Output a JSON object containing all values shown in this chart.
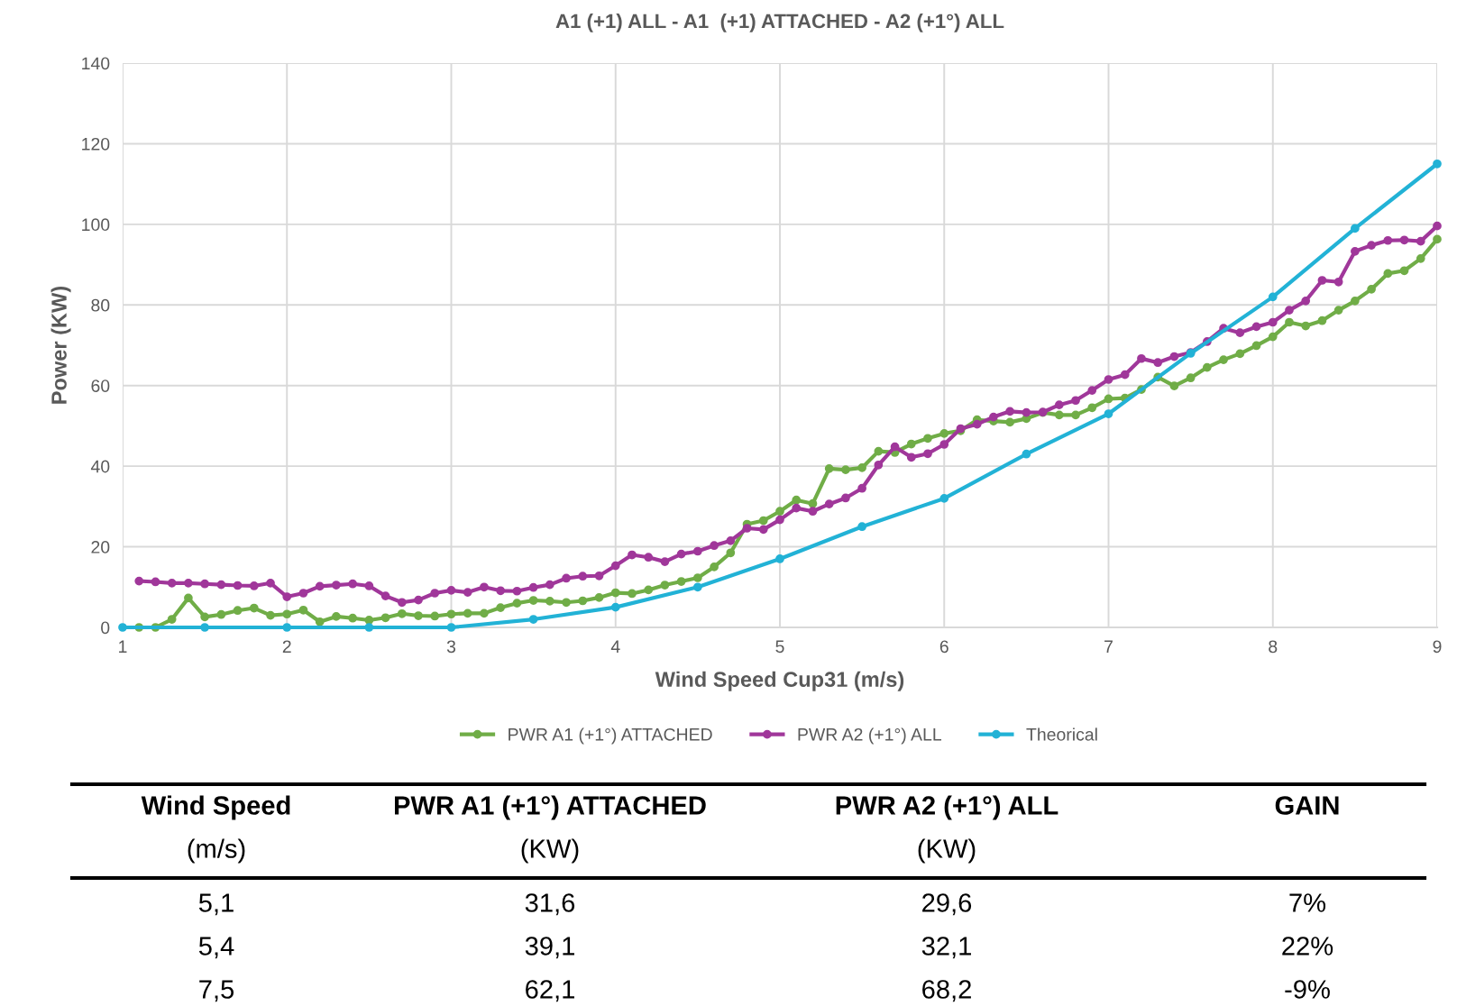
{
  "chart_data": {
    "type": "line",
    "title": "A1 (+1) ALL - A1  (+1) ATTACHED - A2 (+1°) ALL",
    "xlabel": "Wind Speed Cup31 (m/s)",
    "ylabel": "Power (KW)",
    "x": [
      1.1,
      1.2,
      1.3,
      1.4,
      1.5,
      1.6,
      1.7,
      1.8,
      1.9,
      2.0,
      2.1,
      2.2,
      2.3,
      2.4,
      2.5,
      2.6,
      2.7,
      2.8,
      2.9,
      3.0,
      3.1,
      3.2,
      3.3,
      3.4,
      3.5,
      3.6,
      3.7,
      3.8,
      3.9,
      4.0,
      4.1,
      4.2,
      4.3,
      4.4,
      4.5,
      4.6,
      4.7,
      4.8,
      4.9,
      5.0,
      5.1,
      5.2,
      5.3,
      5.4,
      5.5,
      5.6,
      5.7,
      5.8,
      5.9,
      6.0,
      6.1,
      6.2,
      6.3,
      6.4,
      6.5,
      6.6,
      6.7,
      6.8,
      6.9,
      7.0,
      7.1,
      7.2,
      7.3,
      7.4,
      7.5,
      7.6,
      7.7,
      7.8,
      7.9,
      8.0,
      8.1,
      8.2,
      8.3,
      8.4,
      8.5,
      8.6,
      8.7,
      8.8,
      8.9,
      9.0
    ],
    "series": [
      {
        "name": "PWR A1 (+1°) ATTACHED",
        "color": "#70ad47",
        "values": [
          0,
          0,
          2.0,
          7.3,
          2.6,
          3.2,
          4.2,
          4.8,
          3.0,
          3.3,
          4.3,
          1.4,
          2.7,
          2.3,
          1.8,
          2.4,
          3.4,
          2.9,
          2.8,
          3.3,
          3.5,
          3.5,
          4.9,
          6.0,
          6.7,
          6.5,
          6.2,
          6.6,
          7.4,
          8.6,
          8.4,
          9.3,
          10.5,
          11.4,
          12.3,
          15.0,
          18.5,
          25.6,
          26.5,
          28.8,
          31.6,
          30.7,
          39.4,
          39.1,
          39.6,
          43.7,
          43.4,
          45.5,
          46.9,
          48.1,
          48.8,
          51.5,
          51.2,
          50.9,
          51.8,
          53.3,
          52.7,
          52.7,
          54.5,
          56.7,
          56.9,
          59.0,
          62.1,
          59.9,
          61.9,
          64.5,
          66.4,
          67.9,
          69.9,
          72.1,
          75.7,
          74.8,
          76.1,
          78.7,
          81.0,
          83.9,
          87.8,
          88.5,
          91.5,
          96.3
        ]
      },
      {
        "name": "PWR A2 (+1°) ALL",
        "color": "#a0379a",
        "values": [
          11.5,
          11.3,
          11.0,
          11.0,
          10.8,
          10.6,
          10.4,
          10.3,
          11.0,
          7.6,
          8.5,
          10.2,
          10.5,
          10.8,
          10.3,
          7.8,
          6.2,
          6.8,
          8.5,
          9.2,
          8.7,
          10.0,
          9.1,
          9.0,
          9.9,
          10.6,
          12.2,
          12.7,
          12.8,
          15.3,
          18.0,
          17.4,
          16.3,
          18.2,
          18.9,
          20.3,
          21.5,
          24.6,
          24.3,
          26.7,
          29.6,
          28.8,
          30.6,
          32.1,
          34.5,
          40.3,
          44.8,
          42.2,
          43.1,
          45.4,
          49.3,
          50.4,
          52.2,
          53.6,
          53.3,
          53.4,
          55.2,
          56.3,
          58.8,
          61.5,
          62.7,
          66.7,
          65.7,
          67.2,
          68.2,
          70.9,
          74.2,
          73.1,
          74.6,
          75.7,
          78.7,
          81.0,
          86.1,
          85.7,
          93.3,
          94.8,
          96.0,
          96.1,
          95.8,
          99.6
        ]
      },
      {
        "name": "Theorical",
        "color": "#22b2d6",
        "x": [
          1,
          1.5,
          2,
          2.5,
          3,
          3.5,
          4,
          4.5,
          5,
          5.5,
          6,
          6.5,
          7,
          7.5,
          8,
          8.5,
          9
        ],
        "values": [
          0,
          0,
          0,
          0,
          0,
          2,
          5,
          10,
          17,
          25,
          32,
          43,
          53,
          68,
          82,
          99,
          115
        ]
      }
    ],
    "xlim": [
      1,
      9
    ],
    "xticks": [
      1,
      2,
      3,
      4,
      5,
      6,
      7,
      8,
      9
    ],
    "ylim": [
      0,
      140
    ],
    "yticks": [
      0,
      20,
      40,
      60,
      80,
      100,
      120,
      140
    ],
    "grid": true,
    "legend": "bottom",
    "marker": "circle",
    "line_style": "solid",
    "annotations": [
      "Wind Speed",
      "PWR A1 (+1°) ATTACHED",
      "PWR A2 (+1°) ALL",
      "GAIN",
      "(m/s)",
      "(KW)",
      "(KW)",
      "5,1",
      "31,6",
      "29,6",
      "7%",
      "5,4",
      "39,1",
      "32,1",
      "22%",
      "7,5",
      "62,1",
      "68,2",
      "-9%"
    ]
  }
}
